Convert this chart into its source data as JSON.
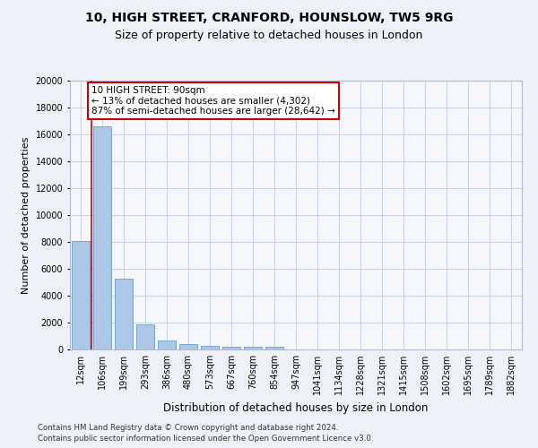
{
  "title1": "10, HIGH STREET, CRANFORD, HOUNSLOW, TW5 9RG",
  "title2": "Size of property relative to detached houses in London",
  "xlabel": "Distribution of detached houses by size in London",
  "ylabel": "Number of detached properties",
  "categories": [
    "12sqm",
    "106sqm",
    "199sqm",
    "293sqm",
    "386sqm",
    "480sqm",
    "573sqm",
    "667sqm",
    "760sqm",
    "854sqm",
    "947sqm",
    "1041sqm",
    "1134sqm",
    "1228sqm",
    "1321sqm",
    "1415sqm",
    "1508sqm",
    "1602sqm",
    "1695sqm",
    "1789sqm",
    "1882sqm"
  ],
  "values": [
    8100,
    16600,
    5300,
    1850,
    700,
    380,
    280,
    220,
    200,
    170,
    0,
    0,
    0,
    0,
    0,
    0,
    0,
    0,
    0,
    0,
    0
  ],
  "bar_color": "#aec6e8",
  "bar_edge_color": "#5a8fc2",
  "vline_color": "#cc0000",
  "annotation_text": "10 HIGH STREET: 90sqm\n← 13% of detached houses are smaller (4,302)\n87% of semi-detached houses are larger (28,642) →",
  "annotation_box_color": "#ffffff",
  "annotation_box_edge": "#cc0000",
  "ylim": [
    0,
    20000
  ],
  "yticks": [
    0,
    2000,
    4000,
    6000,
    8000,
    10000,
    12000,
    14000,
    16000,
    18000,
    20000
  ],
  "footer1": "Contains HM Land Registry data © Crown copyright and database right 2024.",
  "footer2": "Contains public sector information licensed under the Open Government Licence v3.0.",
  "bg_color": "#eef2f8",
  "plot_bg_color": "#f5f7fd",
  "grid_color": "#c8cfe8",
  "title1_fontsize": 10,
  "title2_fontsize": 9,
  "tick_fontsize": 7,
  "ylabel_fontsize": 8,
  "xlabel_fontsize": 8.5
}
